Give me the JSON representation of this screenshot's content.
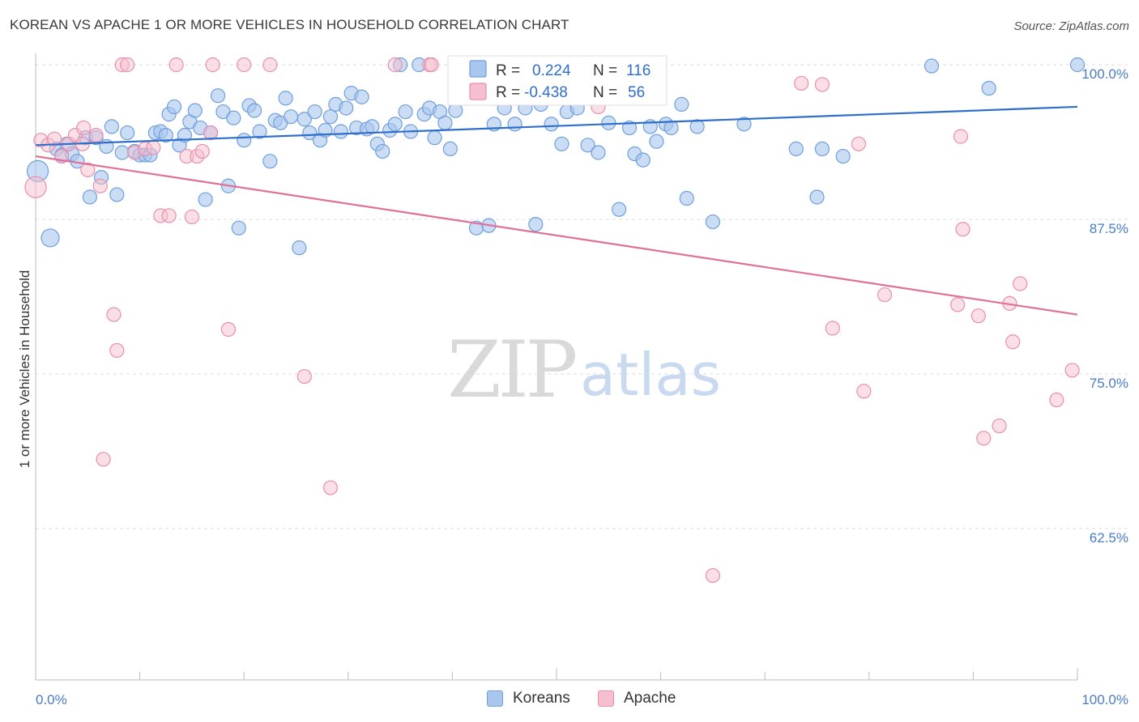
{
  "title": "KOREAN VS APACHE 1 OR MORE VEHICLES IN HOUSEHOLD CORRELATION CHART",
  "source": "Source: ZipAtlas.com",
  "watermark": {
    "zip": "ZIP",
    "atlas": "atlas"
  },
  "colors": {
    "korean_fill": "#a9c6ee",
    "korean_stroke": "#6f9fdd",
    "korean_line": "#2f6fca",
    "apache_fill": "#f6bfd0",
    "apache_stroke": "#e98fac",
    "apache_line": "#e07098",
    "tick_text": "#4a7cc7",
    "grid": "#dddddd"
  },
  "legend": {
    "rows": [
      {
        "r_label": "R =",
        "r_value": "0.224",
        "n_label": "N =",
        "n_value": "116"
      },
      {
        "r_label": "R =",
        "r_value": "-0.438",
        "n_label": "N =",
        "n_value": "56"
      }
    ]
  },
  "bottom_legend": {
    "korean": "Koreans",
    "apache": "Apache"
  },
  "chart_data": {
    "type": "scatter",
    "title": "KOREAN VS APACHE 1 OR MORE VEHICLES IN HOUSEHOLD CORRELATION CHART",
    "xlabel": "",
    "ylabel": "1 or more Vehicles in Household",
    "xlim": [
      0,
      100
    ],
    "ylim": [
      50,
      102.5
    ],
    "x_tick_labels": [
      "0.0%",
      "100.0%"
    ],
    "y_ticks": [
      100,
      87.5,
      75,
      62.5
    ],
    "y_tick_labels": [
      "100.0%",
      "87.5%",
      "75.0%",
      "62.5%"
    ],
    "grid": true,
    "series": [
      {
        "name": "Koreans",
        "R": 0.224,
        "N": 116,
        "trend": [
          [
            0,
            93.5
          ],
          [
            100,
            96.6
          ]
        ],
        "points": [
          [
            0.2,
            91.4,
            3
          ],
          [
            1.4,
            86.0,
            2
          ],
          [
            2.0,
            93.2,
            1
          ],
          [
            2.5,
            92.7,
            1
          ],
          [
            3.0,
            93.6,
            1
          ],
          [
            3.5,
            92.8,
            1
          ],
          [
            4.0,
            92.2,
            1
          ],
          [
            4.8,
            94.1,
            1
          ],
          [
            5.2,
            89.3,
            1
          ],
          [
            5.8,
            94.1,
            1
          ],
          [
            6.3,
            90.9,
            1
          ],
          [
            6.8,
            93.4,
            1
          ],
          [
            7.3,
            95.0,
            1
          ],
          [
            7.8,
            89.5,
            1
          ],
          [
            8.3,
            92.9,
            1
          ],
          [
            8.8,
            94.5,
            1
          ],
          [
            9.5,
            93.0,
            1
          ],
          [
            10.0,
            92.7,
            1
          ],
          [
            10.5,
            92.7,
            1
          ],
          [
            11.0,
            92.7,
            1
          ],
          [
            11.5,
            94.5,
            1
          ],
          [
            12.0,
            94.6,
            1
          ],
          [
            12.5,
            94.3,
            1
          ],
          [
            12.8,
            96.0,
            1
          ],
          [
            13.3,
            96.6,
            1
          ],
          [
            13.8,
            93.5,
            1
          ],
          [
            14.3,
            94.3,
            1
          ],
          [
            14.8,
            95.4,
            1
          ],
          [
            15.3,
            96.3,
            1
          ],
          [
            15.8,
            94.9,
            1
          ],
          [
            16.3,
            89.1,
            1
          ],
          [
            16.8,
            94.5,
            1
          ],
          [
            17.5,
            97.5,
            1
          ],
          [
            18.0,
            96.2,
            1
          ],
          [
            18.5,
            90.2,
            1
          ],
          [
            19.0,
            95.7,
            1
          ],
          [
            19.5,
            86.8,
            1
          ],
          [
            20.0,
            93.9,
            1
          ],
          [
            20.5,
            96.7,
            1
          ],
          [
            21.0,
            96.3,
            1
          ],
          [
            21.5,
            94.6,
            1
          ],
          [
            22.5,
            92.2,
            1
          ],
          [
            23.0,
            95.5,
            1
          ],
          [
            23.5,
            95.3,
            1
          ],
          [
            24.0,
            97.3,
            1
          ],
          [
            24.5,
            95.8,
            1
          ],
          [
            25.3,
            85.2,
            1
          ],
          [
            25.8,
            95.6,
            1
          ],
          [
            26.3,
            94.5,
            1
          ],
          [
            26.8,
            96.2,
            1
          ],
          [
            27.3,
            93.9,
            1
          ],
          [
            27.8,
            94.7,
            1
          ],
          [
            28.3,
            95.8,
            1
          ],
          [
            28.8,
            96.8,
            1
          ],
          [
            29.3,
            94.6,
            1
          ],
          [
            29.8,
            96.5,
            1
          ],
          [
            30.3,
            97.7,
            1
          ],
          [
            30.8,
            94.9,
            1
          ],
          [
            31.3,
            97.4,
            1
          ],
          [
            31.8,
            94.8,
            1
          ],
          [
            32.3,
            95.0,
            1
          ],
          [
            32.8,
            93.6,
            1
          ],
          [
            33.3,
            93.0,
            1
          ],
          [
            34.0,
            94.7,
            1
          ],
          [
            34.5,
            95.2,
            1
          ],
          [
            35.0,
            100.0,
            1
          ],
          [
            35.5,
            96.2,
            1
          ],
          [
            36.0,
            94.6,
            1
          ],
          [
            36.8,
            100.0,
            1
          ],
          [
            37.3,
            96.0,
            1
          ],
          [
            37.8,
            96.5,
            1
          ],
          [
            38.3,
            94.1,
            1
          ],
          [
            38.8,
            96.2,
            1
          ],
          [
            39.3,
            95.3,
            1
          ],
          [
            39.8,
            93.2,
            1
          ],
          [
            40.3,
            96.3,
            1
          ],
          [
            40.8,
            98.3,
            1
          ],
          [
            41.3,
            99.0,
            1
          ],
          [
            41.8,
            100.0,
            1
          ],
          [
            42.3,
            86.8,
            1
          ],
          [
            43.0,
            100.0,
            1
          ],
          [
            43.5,
            87.0,
            1
          ],
          [
            44.0,
            95.2,
            1
          ],
          [
            45.0,
            96.5,
            1
          ],
          [
            46.0,
            95.2,
            1
          ],
          [
            47.0,
            96.5,
            1
          ],
          [
            48.0,
            87.1,
            1
          ],
          [
            48.5,
            96.8,
            1
          ],
          [
            49.5,
            95.2,
            1
          ],
          [
            50.5,
            93.6,
            1
          ],
          [
            51.0,
            96.2,
            1
          ],
          [
            52.0,
            96.5,
            1
          ],
          [
            53.0,
            93.5,
            1
          ],
          [
            54.0,
            92.9,
            1
          ],
          [
            55.0,
            95.3,
            1
          ],
          [
            55.5,
            98.1,
            1
          ],
          [
            56.0,
            88.3,
            1
          ],
          [
            57.0,
            94.9,
            1
          ],
          [
            57.5,
            92.8,
            1
          ],
          [
            58.3,
            92.3,
            1
          ],
          [
            59.0,
            95.0,
            1
          ],
          [
            59.6,
            93.8,
            1
          ],
          [
            60.5,
            95.2,
            1
          ],
          [
            61.0,
            94.9,
            1
          ],
          [
            62.0,
            96.8,
            1
          ],
          [
            62.5,
            89.2,
            1
          ],
          [
            63.5,
            95.0,
            1
          ],
          [
            65.0,
            87.3,
            1
          ],
          [
            68.0,
            95.2,
            1
          ],
          [
            73.0,
            93.2,
            1
          ],
          [
            75.0,
            89.3,
            1
          ],
          [
            75.5,
            93.2,
            1
          ],
          [
            77.5,
            92.6,
            1
          ],
          [
            86.0,
            99.9,
            1
          ],
          [
            91.5,
            98.1,
            1
          ],
          [
            100.0,
            100.0,
            1
          ]
        ]
      },
      {
        "name": "Apache",
        "R": -0.438,
        "N": 56,
        "trend": [
          [
            0,
            92.6
          ],
          [
            100,
            79.8
          ]
        ],
        "points": [
          [
            0.0,
            90.1,
            3
          ],
          [
            0.5,
            93.9,
            1
          ],
          [
            1.2,
            93.5,
            1
          ],
          [
            1.8,
            94.0,
            1
          ],
          [
            2.5,
            92.6,
            1
          ],
          [
            3.2,
            93.6,
            1
          ],
          [
            3.8,
            94.3,
            1
          ],
          [
            4.5,
            93.6,
            1
          ],
          [
            4.6,
            94.9,
            1
          ],
          [
            5.0,
            91.5,
            1
          ],
          [
            5.8,
            94.3,
            1
          ],
          [
            6.2,
            90.2,
            1
          ],
          [
            6.5,
            68.1,
            1
          ],
          [
            7.5,
            79.8,
            1
          ],
          [
            7.8,
            76.9,
            1
          ],
          [
            8.3,
            100.0,
            1
          ],
          [
            8.8,
            100.0,
            1
          ],
          [
            9.5,
            92.9,
            1
          ],
          [
            10.5,
            93.2,
            1
          ],
          [
            11.3,
            93.3,
            1
          ],
          [
            12.0,
            87.8,
            1
          ],
          [
            12.8,
            87.8,
            1
          ],
          [
            13.5,
            100.0,
            1
          ],
          [
            14.5,
            92.6,
            1
          ],
          [
            15.0,
            87.7,
            1
          ],
          [
            15.5,
            92.6,
            1
          ],
          [
            16.0,
            93.0,
            1
          ],
          [
            16.8,
            94.5,
            1
          ],
          [
            17.0,
            100.0,
            1
          ],
          [
            18.5,
            78.6,
            1
          ],
          [
            20.0,
            100.0,
            1
          ],
          [
            22.5,
            100.0,
            1
          ],
          [
            25.8,
            74.8,
            1
          ],
          [
            28.3,
            65.8,
            1
          ],
          [
            34.5,
            100.0,
            1
          ],
          [
            37.8,
            100.0,
            1
          ],
          [
            38.0,
            100.0,
            1
          ],
          [
            54.0,
            96.6,
            1
          ],
          [
            65.0,
            58.7,
            1
          ],
          [
            73.5,
            98.5,
            1
          ],
          [
            75.5,
            98.4,
            1
          ],
          [
            76.5,
            78.7,
            1
          ],
          [
            79.0,
            93.6,
            1
          ],
          [
            79.5,
            73.6,
            1
          ],
          [
            81.5,
            81.4,
            1
          ],
          [
            88.5,
            80.6,
            1
          ],
          [
            88.8,
            94.2,
            1
          ],
          [
            89.0,
            86.7,
            1
          ],
          [
            90.5,
            79.7,
            1
          ],
          [
            91.0,
            69.8,
            1
          ],
          [
            92.5,
            70.8,
            1
          ],
          [
            93.5,
            80.7,
            1
          ],
          [
            93.8,
            77.6,
            1
          ],
          [
            94.5,
            82.3,
            1
          ],
          [
            98.0,
            72.9,
            1
          ],
          [
            99.5,
            75.3,
            1
          ]
        ]
      }
    ]
  }
}
